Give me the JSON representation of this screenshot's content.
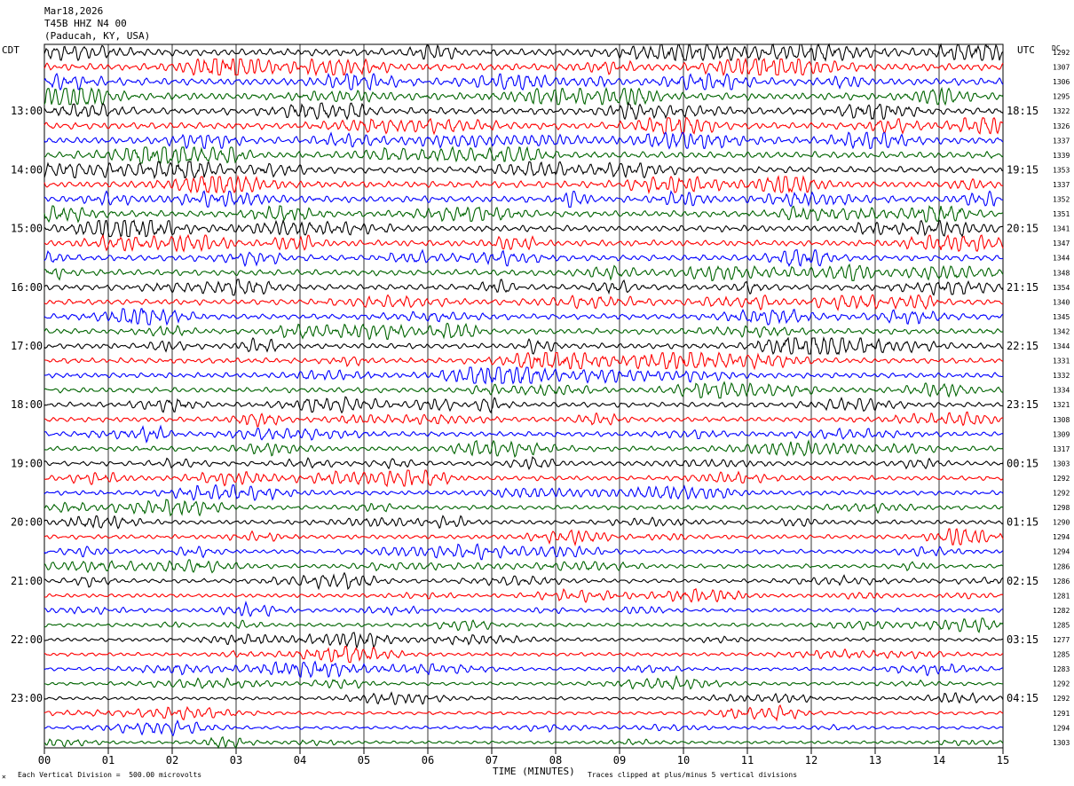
{
  "header": {
    "date": "Mar18,2026",
    "station": "T45B HHZ N4 00",
    "location": "(Paducah, KY, USA)"
  },
  "left_tz": "CDT",
  "right_tz": "UTC",
  "dc_label": "DC",
  "footer": {
    "scale": "Each Vertical Division =  500.00 microvolts",
    "clip": "Traces clipped at plus/minus 5 vertical divisions",
    "corner": "✕"
  },
  "colors": {
    "cycle": [
      "#000000",
      "#ff0000",
      "#0000ff",
      "#006400"
    ],
    "grid": "#000000"
  },
  "chart_data": {
    "type": "line",
    "title": "",
    "xlabel": "TIME (MINUTES)",
    "xlim": [
      0,
      15
    ],
    "x_ticks": [
      "00",
      "01",
      "02",
      "03",
      "04",
      "05",
      "06",
      "07",
      "08",
      "09",
      "10",
      "11",
      "12",
      "13",
      "14",
      "15"
    ],
    "trace_count": 48,
    "left_hour_labels": [
      "13:00",
      "14:00",
      "15:00",
      "16:00",
      "17:00",
      "18:00",
      "19:00",
      "20:00",
      "21:00",
      "22:00",
      "23:00"
    ],
    "right_hour_labels": [
      "18:15",
      "19:15",
      "20:15",
      "21:15",
      "22:15",
      "23:15",
      "00:15",
      "01:15",
      "02:15",
      "03:15",
      "04:15"
    ],
    "dc_offsets": [
      1292,
      1307,
      1306,
      1295,
      1322,
      1326,
      1337,
      1339,
      1353,
      1337,
      1352,
      1351,
      1341,
      1347,
      1344,
      1348,
      1354,
      1340,
      1345,
      1342,
      1344,
      1331,
      1332,
      1334,
      1321,
      1308,
      1309,
      1317,
      1303,
      1292,
      1292,
      1298,
      1290,
      1294,
      1294,
      1286,
      1286,
      1281,
      1282,
      1285,
      1277,
      1285,
      1283,
      1292,
      1292,
      1291,
      1294,
      1303
    ]
  }
}
